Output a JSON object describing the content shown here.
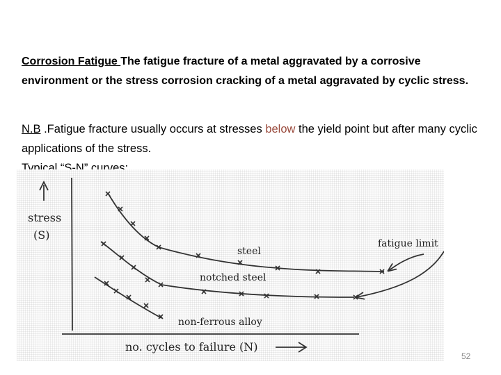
{
  "para1": {
    "term": "Corrosion Fatigue ",
    "text": " The fatigue fracture of a metal aggravated by a corrosive environment or the stress corrosion cracking of a metal aggravated by cyclic stress."
  },
  "para2": {
    "nb": "N.B",
    "text_a": " .Fatigue fracture usually occurs at stresses ",
    "below": "below",
    "text_b": "  the yield point but after many cyclic applications of the stress.",
    "line3": "Typical “S-N” curves:"
  },
  "figure": {
    "ylabel_line1": "stress",
    "ylabel_line2": "(S)",
    "xlabel": "no. cycles to failure (N)",
    "steel_label": "steel",
    "notched_label": "notched steel",
    "nonferrous_label": "non-ferrous alloy",
    "fatigue_limit_label": "fatigue limit"
  },
  "page_number": "52"
}
